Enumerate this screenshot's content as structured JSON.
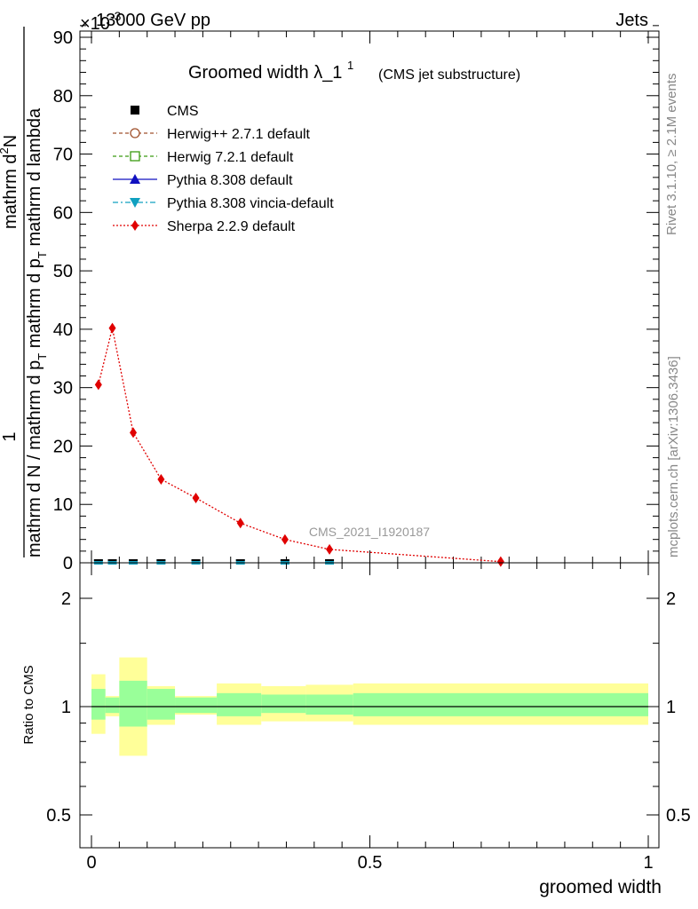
{
  "header": {
    "left": "13000 GeV pp",
    "right": "Jets",
    "exponent_label": "×10^-3"
  },
  "side_labels": {
    "rivet": "Rivet 3.1.10, ≥ 2.1M events",
    "mcplots": "mcplots.cern.ch [arXiv:1306.3436]"
  },
  "watermark": "CMS_2021_I1920187",
  "chart_data": [
    {
      "type": "line",
      "title": "Groomed width",
      "title_symbol": "λ_1",
      "title_superscript": "1",
      "subtitle": "(CMS jet substructure)",
      "ylabel_numerator": "1",
      "ylabel_denominator": "mathrm d N / mathrm d p_T mathrm d p_T mathrm d lambda",
      "ylabel_top": "mathrm d^2N",
      "xlabel": "",
      "xlim": [
        0,
        1
      ],
      "ylim": [
        0,
        92
      ],
      "yticks": [
        0,
        10,
        20,
        30,
        40,
        50,
        60,
        70,
        80,
        90
      ],
      "xticks": [
        0,
        0.5,
        1
      ],
      "y_scale_factor": "x10^-3",
      "legend_position": "top-left",
      "legend": [
        {
          "label": "CMS",
          "color": "#000000",
          "marker": "square-filled",
          "line": "none"
        },
        {
          "label": "Herwig++ 2.7.1 default",
          "color": "#a0522d",
          "marker": "circle-open",
          "line": "dashed"
        },
        {
          "label": "Herwig 7.2.1 default",
          "color": "#3a9a10",
          "marker": "square-open",
          "line": "dashed"
        },
        {
          "label": "Pythia 8.308 default",
          "color": "#1010c0",
          "marker": "triangle-up",
          "line": "solid"
        },
        {
          "label": "Pythia 8.308 vincia-default",
          "color": "#10a0c0",
          "marker": "triangle-down",
          "line": "dashdot"
        },
        {
          "label": "Sherpa 2.2.9 default",
          "color": "#e00000",
          "marker": "diamond",
          "line": "dotted"
        }
      ],
      "series": [
        {
          "name": "Sherpa 2.2.9 default",
          "x": [
            0.0125,
            0.0375,
            0.075,
            0.125,
            0.1875,
            0.2675,
            0.3475,
            0.4275,
            0.735
          ],
          "y": [
            30.5,
            40.2,
            22.3,
            14.3,
            11.1,
            6.8,
            4.0,
            2.3,
            0.2
          ]
        },
        {
          "name": "CMS",
          "x": [
            0.0125,
            0.0375,
            0.075,
            0.125,
            0.1875,
            0.2675,
            0.3475,
            0.4275
          ],
          "y": [
            0,
            0,
            0,
            0,
            0,
            0,
            0,
            0
          ]
        }
      ]
    },
    {
      "type": "area",
      "ylabel": "Ratio to CMS",
      "xlabel": "groomed width",
      "xlim": [
        0,
        1
      ],
      "ylim": [
        0.41,
        2.35
      ],
      "y_scale": "log",
      "yticks": [
        0.5,
        1,
        2
      ],
      "xticks": [
        0,
        0.5,
        1
      ],
      "bands": {
        "edges": [
          0,
          0.025,
          0.05,
          0.1,
          0.15,
          0.225,
          0.305,
          0.385,
          0.47,
          1.0
        ],
        "inner_lo": [
          0.92,
          0.96,
          0.88,
          0.92,
          0.96,
          0.94,
          0.96,
          0.95,
          0.94
        ],
        "inner_hi": [
          1.12,
          1.06,
          1.18,
          1.12,
          1.06,
          1.09,
          1.08,
          1.08,
          1.09
        ],
        "outer_lo": [
          0.84,
          0.94,
          0.73,
          0.89,
          0.95,
          0.89,
          0.91,
          0.91,
          0.89
        ],
        "outer_hi": [
          1.23,
          1.07,
          1.37,
          1.14,
          1.07,
          1.16,
          1.14,
          1.15,
          1.16
        ],
        "inner_color": "#99ff99",
        "outer_color": "#ffff99"
      },
      "reference": 1
    }
  ]
}
